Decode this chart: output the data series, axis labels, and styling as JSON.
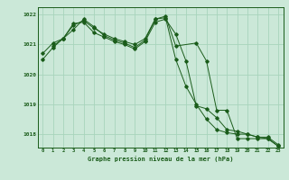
{
  "title": "Graphe pression niveau de la mer (hPa)",
  "background_color": "#cbe8d8",
  "grid_color": "#a8d4bc",
  "line_color": "#1a5c1a",
  "marker_color": "#1a5c1a",
  "xlim": [
    -0.5,
    23.5
  ],
  "ylim": [
    1017.55,
    1022.25
  ],
  "yticks": [
    1018,
    1019,
    1020,
    1021,
    1022
  ],
  "xticks": [
    0,
    1,
    2,
    3,
    4,
    5,
    6,
    7,
    8,
    9,
    10,
    11,
    12,
    13,
    14,
    15,
    16,
    17,
    18,
    19,
    20,
    21,
    22,
    23
  ],
  "series1_x": [
    0,
    1,
    2,
    3,
    4,
    5,
    6,
    7,
    8,
    9,
    10,
    11,
    12,
    13,
    14,
    15,
    16,
    17,
    18,
    19,
    20,
    21,
    22,
    23
  ],
  "series1_y": [
    1020.5,
    1020.9,
    1021.2,
    1021.5,
    1021.85,
    1021.6,
    1021.3,
    1021.15,
    1021.05,
    1020.9,
    1021.15,
    1021.85,
    1021.9,
    1020.5,
    1019.6,
    1019.0,
    1018.5,
    1018.15,
    1018.05,
    1018.0,
    1018.0,
    1017.9,
    1017.9,
    1017.65
  ],
  "series2_x": [
    0,
    1,
    2,
    3,
    4,
    5,
    6,
    7,
    8,
    9,
    10,
    11,
    12,
    13,
    14,
    15,
    16,
    17,
    18,
    19,
    20,
    21,
    22,
    23
  ],
  "series2_y": [
    1020.7,
    1021.05,
    1021.2,
    1021.7,
    1021.75,
    1021.4,
    1021.25,
    1021.1,
    1021.0,
    1020.85,
    1021.1,
    1021.75,
    1021.85,
    1021.35,
    1020.45,
    1018.95,
    1018.85,
    1018.55,
    1018.15,
    1018.1,
    1018.0,
    1017.9,
    1017.85,
    1017.6
  ],
  "series3_x": [
    1,
    2,
    3,
    4,
    5,
    6,
    7,
    8,
    9,
    10,
    11,
    12,
    13,
    15,
    16,
    17,
    18,
    19,
    20,
    21,
    22,
    23
  ],
  "series3_y": [
    1020.95,
    1021.2,
    1021.65,
    1021.8,
    1021.55,
    1021.35,
    1021.2,
    1021.1,
    1021.0,
    1021.2,
    1021.85,
    1021.95,
    1020.95,
    1021.05,
    1020.45,
    1018.8,
    1018.8,
    1017.85,
    1017.85,
    1017.85,
    1017.85,
    1017.6
  ]
}
